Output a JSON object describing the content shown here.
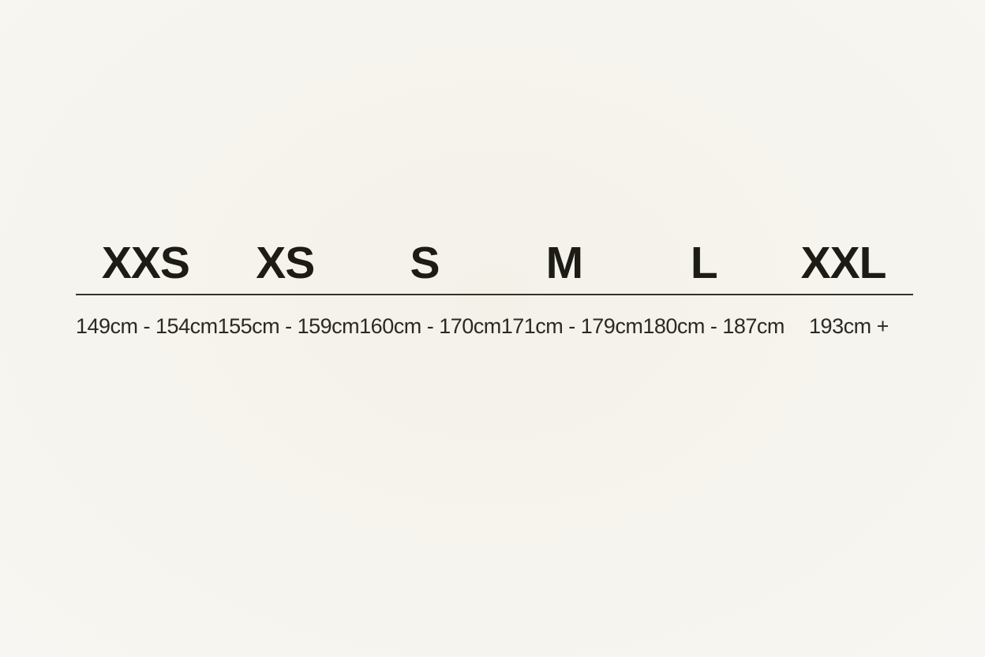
{
  "page": {
    "background_color": "#f6f4ee",
    "text_color": "#1d1b16",
    "divider_color": "#35332d"
  },
  "chart_data": {
    "type": "table",
    "title": "",
    "columns": [
      "XXS",
      "XS",
      "S",
      "M",
      "L",
      "XXL"
    ],
    "rows": [
      [
        "149cm - 154cm",
        "155cm - 159cm",
        "160cm - 170cm",
        "171cm - 179cm",
        "180cm - 187cm",
        "193cm +"
      ]
    ],
    "layout": "single horizontal rule between size labels (top) and height ranges (bottom), grid off"
  },
  "sizes": [
    {
      "label": "XXS",
      "range": "149cm - 154cm"
    },
    {
      "label": "XS",
      "range": "155cm - 159cm"
    },
    {
      "label": "S",
      "range": "160cm - 170cm"
    },
    {
      "label": "M",
      "range": "171cm - 179cm"
    },
    {
      "label": "L",
      "range": "180cm - 187cm"
    },
    {
      "label": "XXL",
      "range": "193cm +"
    }
  ]
}
